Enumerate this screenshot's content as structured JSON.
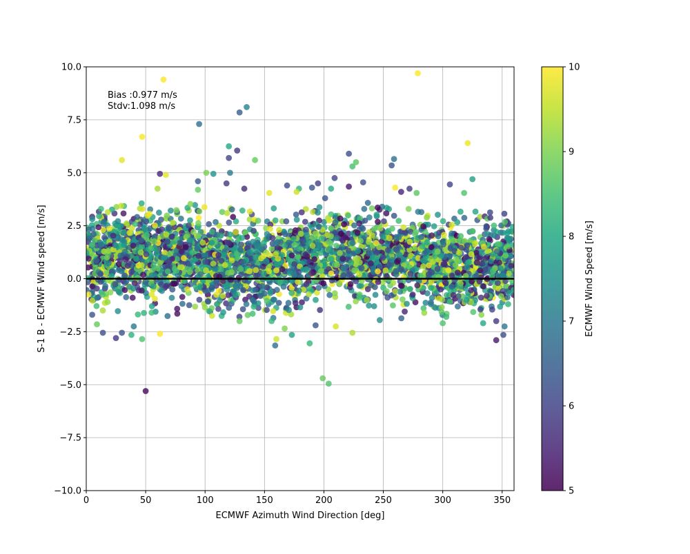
{
  "chart_data": {
    "type": "scatter",
    "xlabel": "ECMWF Azimuth Wind Direction [deg]",
    "ylabel": "S-1 B - ECMWF Wind speed [m/s]",
    "xlim": [
      0,
      360
    ],
    "ylim": [
      -10,
      10
    ],
    "xticks": [
      0,
      50,
      100,
      150,
      200,
      250,
      300,
      350
    ],
    "yticks": [
      -10.0,
      -7.5,
      -5.0,
      -2.5,
      0.0,
      2.5,
      5.0,
      7.5,
      10.0
    ],
    "ytick_labels": [
      "−10.0",
      "−7.5",
      "−5.0",
      "−2.5",
      "0.0",
      "2.5",
      "5.0",
      "7.5",
      "10.0"
    ],
    "grid": true,
    "reference_line": {
      "y": 0,
      "color": "#000000"
    },
    "annotations": [
      "Bias :0.977 m/s",
      "Stdv:1.098 m/s"
    ],
    "bias": 0.977,
    "stdv": 1.098,
    "colorbar": {
      "label": "ECMWF Wind Speed [m/s]",
      "colormap": "viridis",
      "range": [
        5,
        10
      ],
      "ticks": [
        5,
        6,
        7,
        8,
        9,
        10
      ]
    },
    "points": [
      [
        65,
        9.4,
        10
      ],
      [
        279,
        9.7,
        10
      ],
      [
        95,
        7.3,
        6.8
      ],
      [
        129,
        7.85,
        6.5
      ],
      [
        135,
        8.1,
        7.2
      ],
      [
        47,
        6.7,
        10
      ],
      [
        30,
        5.6,
        9.8
      ],
      [
        120,
        6.25,
        8.0
      ],
      [
        127,
        6.05,
        5.8
      ],
      [
        321,
        6.4,
        9.9
      ],
      [
        62,
        4.95,
        5.5
      ],
      [
        67,
        4.9,
        9.8
      ],
      [
        101,
        5.0,
        9.0
      ],
      [
        107,
        4.95,
        7.5
      ],
      [
        121,
        5.0,
        7.0
      ],
      [
        120,
        5.7,
        6.0
      ],
      [
        142,
        5.6,
        8.8
      ],
      [
        221,
        5.9,
        6.2
      ],
      [
        224,
        5.3,
        8.5
      ],
      [
        227,
        5.5,
        8.7
      ],
      [
        259,
        5.65,
        6.8
      ],
      [
        257,
        5.35,
        6.3
      ],
      [
        325,
        4.7,
        7.8
      ],
      [
        233,
        4.55,
        6.2
      ],
      [
        221,
        4.35,
        5.3
      ],
      [
        190,
        4.3,
        6.3
      ],
      [
        195,
        4.5,
        5.9
      ],
      [
        209,
        4.75,
        6.0
      ],
      [
        206,
        4.25,
        8.0
      ],
      [
        179,
        4.25,
        8.2
      ],
      [
        154,
        4.05,
        9.8
      ],
      [
        177,
        4.1,
        9.6
      ],
      [
        169,
        4.4,
        6.1
      ],
      [
        133,
        4.25,
        5.6
      ],
      [
        118,
        4.5,
        5.8
      ],
      [
        94,
        4.6,
        6.4
      ],
      [
        94,
        4.2,
        8.8
      ],
      [
        60,
        4.25,
        9.3
      ],
      [
        260,
        4.3,
        10
      ],
      [
        265,
        4.1,
        5.5
      ],
      [
        272,
        4.25,
        5.8
      ],
      [
        278,
        4.05,
        8.7
      ],
      [
        306,
        4.45,
        6.0
      ],
      [
        318,
        4.05,
        8.6
      ],
      [
        201,
        3.8,
        6.3
      ],
      [
        50,
        -5.3,
        5.1
      ],
      [
        199,
        -4.7,
        8.8
      ],
      [
        204,
        -4.95,
        8.6
      ],
      [
        188,
        -3.05,
        8.3
      ],
      [
        159,
        -3.15,
        6.8
      ],
      [
        160,
        -2.85,
        9.6
      ],
      [
        173,
        -2.65,
        7.8
      ],
      [
        210,
        -2.25,
        9.7
      ],
      [
        224,
        -2.55,
        9.4
      ],
      [
        247,
        -1.95,
        7.4
      ],
      [
        62,
        -2.6,
        10
      ],
      [
        47,
        -2.85,
        8.6
      ],
      [
        38,
        -2.65,
        8.2
      ],
      [
        40,
        -2.25,
        7.0
      ],
      [
        25,
        -2.8,
        5.8
      ],
      [
        30,
        -2.55,
        6.3
      ],
      [
        14,
        -2.55,
        6.2
      ],
      [
        9,
        -2.15,
        8.8
      ],
      [
        345,
        -2.9,
        5.3
      ],
      [
        351,
        -2.65,
        6.2
      ],
      [
        345,
        -2.0,
        5.8
      ],
      [
        352,
        -2.25,
        7.0
      ],
      [
        334,
        -2.1,
        8.0
      ],
      [
        300,
        -2.1,
        8.6
      ],
      [
        303,
        -1.8,
        8.4
      ],
      [
        268,
        -1.55,
        5.5
      ],
      [
        156,
        -2.0,
        8.3
      ],
      [
        129,
        -2.0,
        8.8
      ],
      [
        167,
        -2.35,
        9.0
      ],
      [
        193,
        -2.2,
        6.3
      ],
      [
        96,
        -0.35,
        8.0
      ],
      [
        72,
        -0.9,
        7.3
      ],
      [
        85,
        -0.5,
        9.8
      ],
      [
        110,
        -1.2,
        7.6
      ],
      [
        140,
        -1.0,
        6.8
      ],
      [
        180,
        -1.35,
        7.5
      ],
      [
        230,
        -0.9,
        8.5
      ],
      [
        260,
        -0.6,
        9.4
      ],
      [
        290,
        -1.2,
        7.0
      ],
      [
        320,
        -1.0,
        7.8
      ],
      [
        355,
        -1.2,
        8.2
      ],
      [
        5,
        -1.7,
        6.3
      ],
      [
        18,
        -1.1,
        9.2
      ],
      [
        55,
        -1.6,
        8.4
      ],
      [
        150,
        -0.7,
        6.6
      ]
    ]
  }
}
